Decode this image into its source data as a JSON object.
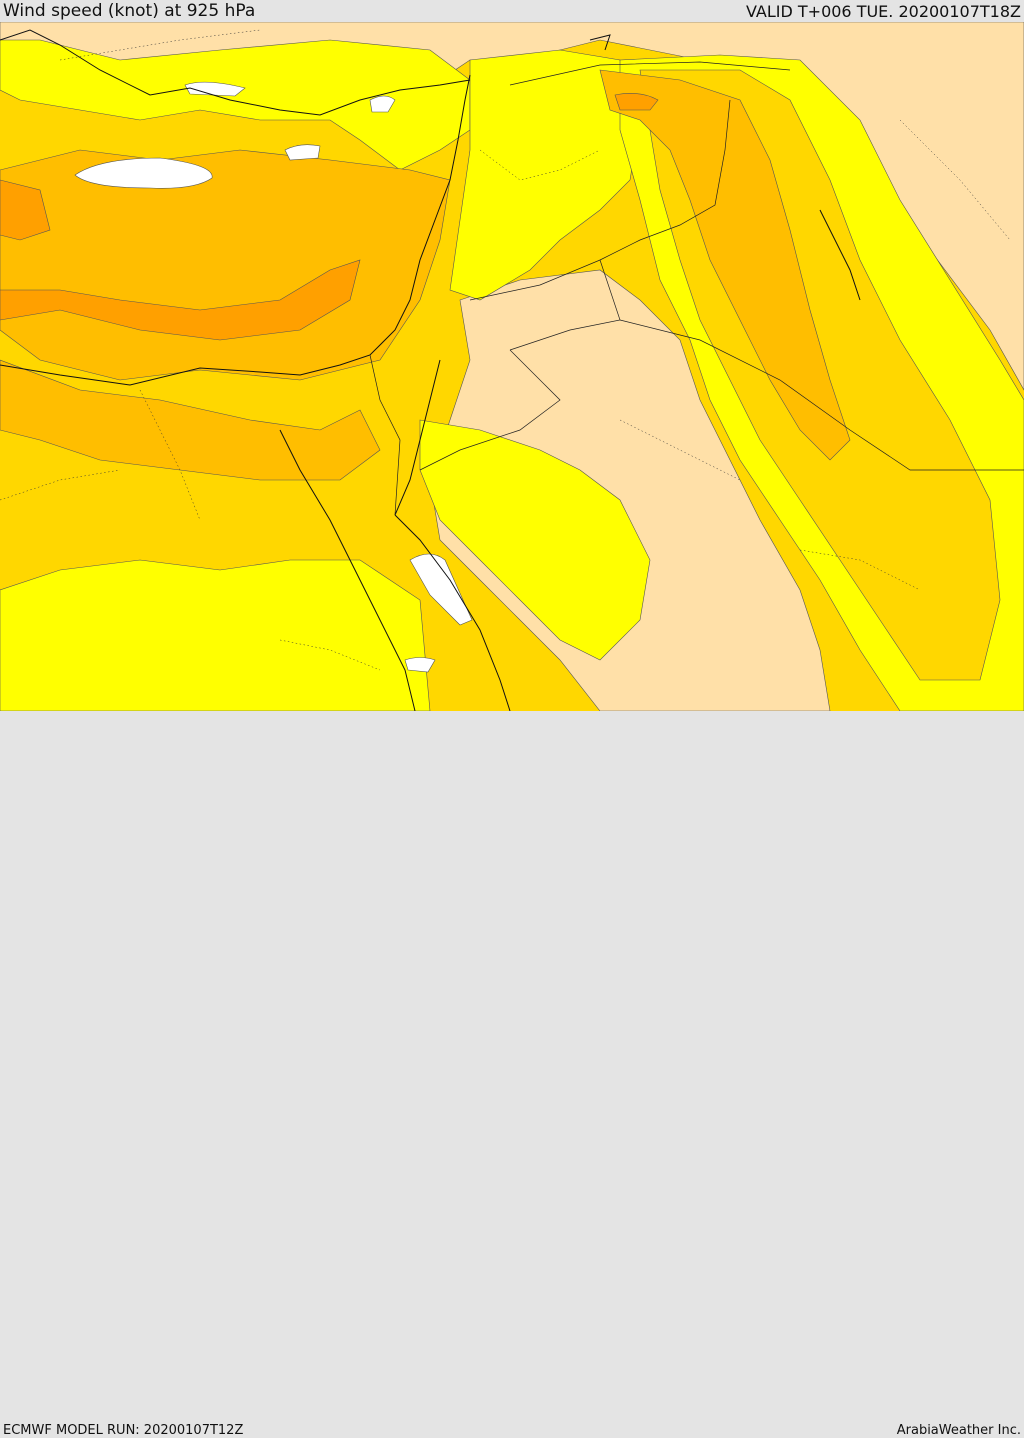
{
  "header": {
    "title": "Wind speed (knot) at 925 hPa",
    "valid": "VALID T+006 TUE. 20200107T18Z"
  },
  "footer": {
    "model_run": "ECMWF MODEL RUN: 20200107T12Z",
    "credit": "ArabiaWeather Inc."
  },
  "colors": {
    "calm": "#ffffff",
    "light": "#ffe0a8",
    "moderate": "#ffff00",
    "fresh": "#ffd700",
    "strong": "#ffbe00",
    "very_strong": "#ffa000",
    "gale": "#ff8c00"
  }
}
